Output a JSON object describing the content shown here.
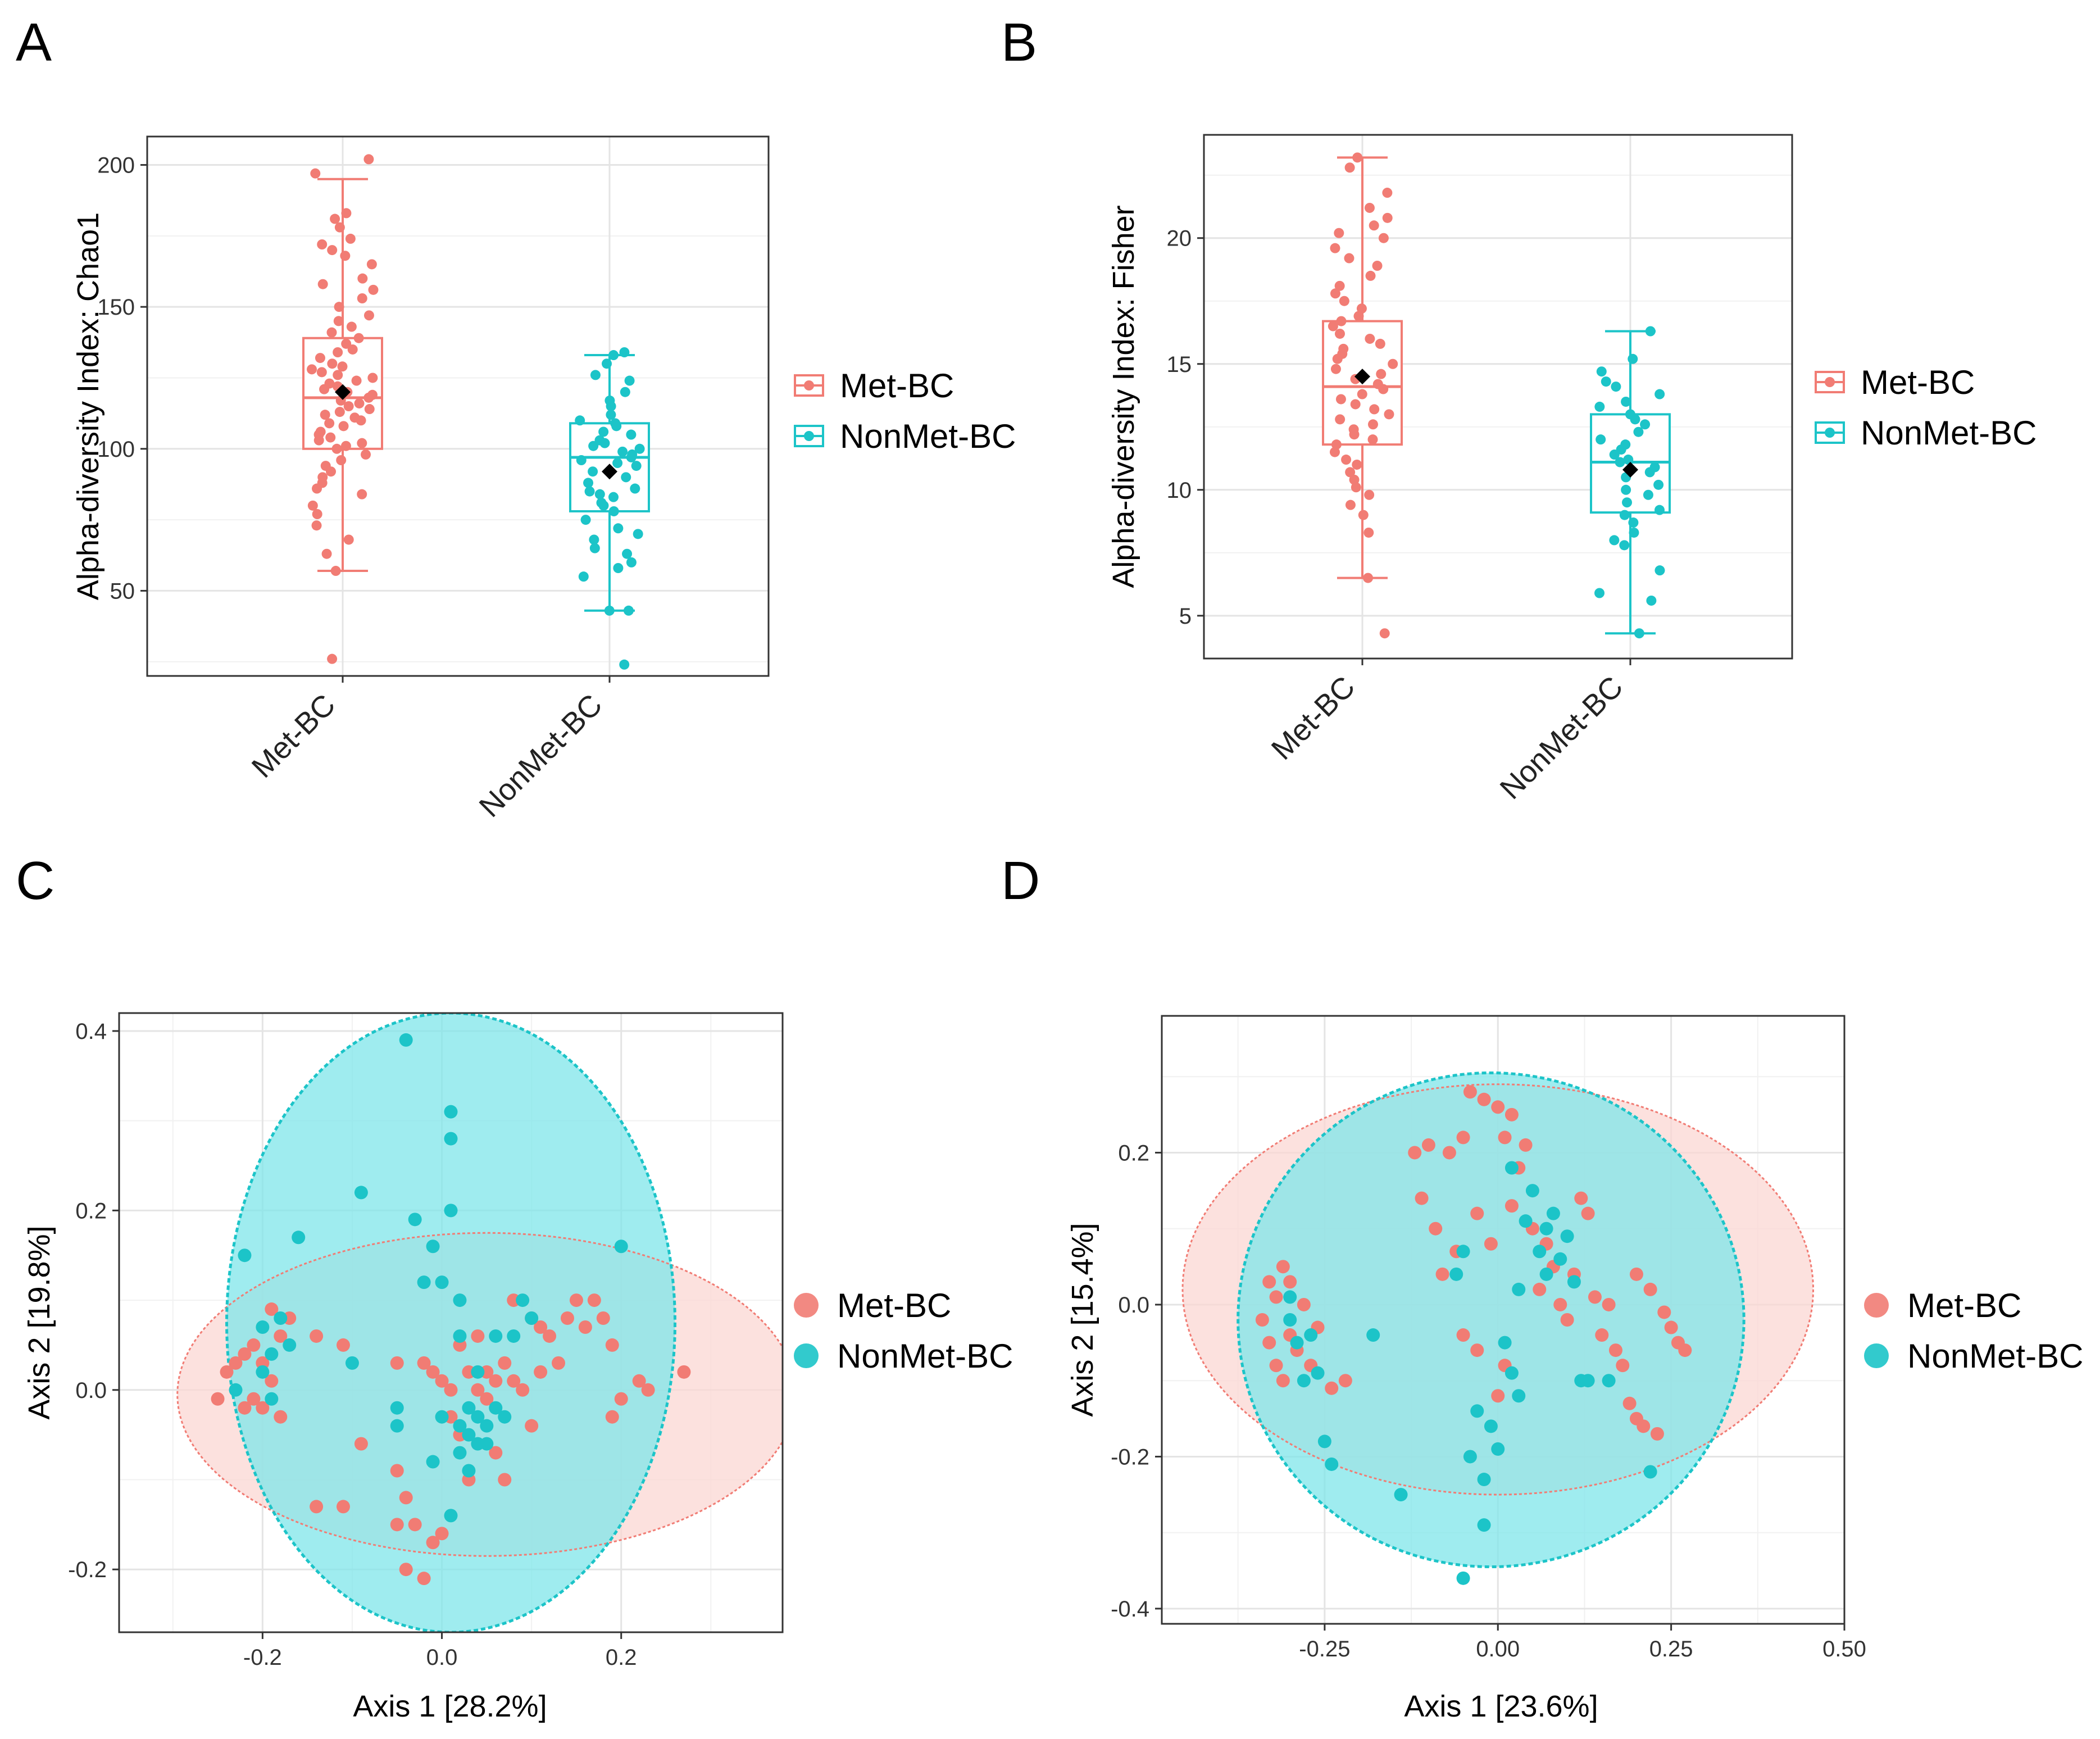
{
  "colors": {
    "met": "#f17c74",
    "nonmet": "#1cc4c8",
    "met_fill": "#fbd7d3",
    "nonmet_fill": "#7fe6ea",
    "overlap": "#9dcfcc",
    "mean_marker": "#000000"
  },
  "chart_data": [
    {
      "panel": "A",
      "type": "boxplot",
      "ylabel": "Alpha-diversity Index: Chao1",
      "xlabel": "",
      "categories": [
        "Met-BC",
        "NonMet-BC"
      ],
      "ylim": [
        20,
        210
      ],
      "yticks": [
        50,
        100,
        150,
        200
      ],
      "legend": {
        "position": "right",
        "entries": [
          "Met-BC",
          "NonMet-BC"
        ]
      },
      "series": [
        {
          "name": "Met-BC",
          "color": "#f17c74",
          "whisker_low": 57,
          "q1": 100,
          "median": 118,
          "q3": 139,
          "whisker_high": 195,
          "mean": 120,
          "points": [
            202,
            197,
            183,
            181,
            178,
            174,
            172,
            170,
            168,
            165,
            160,
            158,
            156,
            153,
            150,
            147,
            145,
            143,
            141,
            139,
            137,
            135,
            134,
            132,
            130,
            129,
            128,
            127,
            126,
            125,
            124,
            123,
            122,
            121,
            120,
            119,
            118,
            117,
            116,
            115,
            114,
            113,
            112,
            111,
            110,
            109,
            108,
            106,
            105,
            104,
            103,
            102,
            101,
            100,
            98,
            96,
            94,
            92,
            90,
            88,
            86,
            84,
            80,
            77,
            73,
            68,
            63,
            57,
            26
          ]
        },
        {
          "name": "NonMet-BC",
          "color": "#1cc4c8",
          "whisker_low": 43,
          "q1": 78,
          "median": 97,
          "q3": 109,
          "whisker_high": 133,
          "mean": 92,
          "points": [
            134,
            133,
            130,
            126,
            124,
            120,
            117,
            115,
            112,
            110,
            109,
            108,
            106,
            105,
            103,
            102,
            101,
            100,
            99,
            98,
            97,
            96,
            95,
            94,
            92,
            90,
            88,
            86,
            85,
            84,
            83,
            81,
            80,
            78,
            75,
            72,
            70,
            68,
            65,
            63,
            60,
            58,
            55,
            43,
            43,
            24
          ]
        }
      ]
    },
    {
      "panel": "B",
      "type": "boxplot",
      "ylabel": "Alpha-diversity Index: Fisher",
      "xlabel": "",
      "categories": [
        "Met-BC",
        "NonMet-BC"
      ],
      "ylim": [
        3.3,
        24.1
      ],
      "yticks": [
        5,
        10,
        15,
        20
      ],
      "legend": {
        "position": "right",
        "entries": [
          "Met-BC",
          "NonMet-BC"
        ]
      },
      "series": [
        {
          "name": "Met-BC",
          "color": "#f17c74",
          "whisker_low": 6.5,
          "q1": 11.8,
          "median": 14.1,
          "q3": 16.7,
          "whisker_high": 23.2,
          "mean": 14.5,
          "points": [
            23.2,
            22.8,
            21.8,
            21.2,
            20.8,
            20.5,
            20.2,
            20.0,
            19.6,
            19.2,
            18.9,
            18.5,
            18.1,
            17.8,
            17.5,
            17.2,
            16.9,
            16.7,
            16.5,
            16.2,
            16.0,
            15.8,
            15.6,
            15.4,
            15.2,
            15.0,
            14.8,
            14.6,
            14.4,
            14.2,
            14.0,
            13.8,
            13.6,
            13.4,
            13.2,
            13.0,
            12.8,
            12.6,
            12.4,
            12.2,
            12.0,
            11.8,
            11.5,
            11.2,
            11.0,
            10.7,
            10.4,
            10.1,
            9.8,
            9.4,
            9.0,
            8.3,
            6.5,
            4.3
          ]
        },
        {
          "name": "NonMet-BC",
          "color": "#1cc4c8",
          "whisker_low": 4.3,
          "q1": 9.1,
          "median": 11.1,
          "q3": 13.0,
          "whisker_high": 16.3,
          "mean": 10.8,
          "points": [
            16.3,
            15.2,
            14.7,
            14.3,
            14.1,
            13.8,
            13.5,
            13.3,
            13.0,
            12.8,
            12.6,
            12.3,
            12.0,
            11.8,
            11.6,
            11.4,
            11.2,
            11.1,
            10.9,
            10.7,
            10.5,
            10.2,
            10.0,
            9.8,
            9.5,
            9.2,
            9.0,
            8.7,
            8.3,
            8.0,
            7.8,
            6.8,
            5.9,
            5.6,
            4.3
          ]
        }
      ]
    },
    {
      "panel": "C",
      "type": "scatter",
      "xlabel": "Axis 1 [28.2%]",
      "ylabel": "Axis 2 [19.8%]",
      "xlim": [
        -0.36,
        0.38
      ],
      "ylim": [
        -0.27,
        0.42
      ],
      "xticks": [
        -0.2,
        0.0,
        0.2
      ],
      "xtick_labels": [
        "-0.2",
        "0.0",
        "0.2"
      ],
      "yticks": [
        -0.2,
        0.0,
        0.2,
        0.4
      ],
      "ytick_labels": [
        "-0.2",
        "0.0",
        "0.2",
        "0.4"
      ],
      "legend": {
        "position": "right",
        "entries": [
          "Met-BC",
          "NonMet-BC"
        ]
      },
      "ellipses": [
        {
          "name": "Met-BC",
          "cx": 0.05,
          "cy": -0.005,
          "rx": 0.345,
          "ry": 0.18
        },
        {
          "name": "NonMet-BC",
          "cx": 0.01,
          "cy": 0.075,
          "rx": 0.25,
          "ry": 0.345
        }
      ],
      "series": [
        {
          "name": "Met-BC",
          "color": "#f17c74",
          "x": [
            -0.25,
            -0.24,
            -0.23,
            -0.22,
            -0.22,
            -0.21,
            -0.21,
            -0.2,
            -0.2,
            -0.19,
            -0.19,
            -0.18,
            -0.18,
            -0.17,
            -0.14,
            -0.14,
            -0.11,
            -0.11,
            -0.09,
            -0.05,
            -0.05,
            -0.05,
            -0.04,
            -0.04,
            -0.03,
            -0.02,
            -0.02,
            -0.01,
            -0.01,
            0.0,
            0.0,
            0.01,
            0.01,
            0.02,
            0.02,
            0.03,
            0.03,
            0.04,
            0.04,
            0.05,
            0.05,
            0.06,
            0.06,
            0.07,
            0.07,
            0.08,
            0.08,
            0.09,
            0.1,
            0.1,
            0.11,
            0.11,
            0.12,
            0.13,
            0.14,
            0.15,
            0.16,
            0.17,
            0.18,
            0.19,
            0.19,
            0.2,
            0.22,
            0.23,
            0.27
          ],
          "y": [
            -0.01,
            0.02,
            0.03,
            -0.02,
            0.04,
            -0.01,
            0.05,
            0.03,
            -0.02,
            0.09,
            0.01,
            -0.03,
            0.06,
            0.08,
            0.06,
            -0.13,
            -0.13,
            0.05,
            -0.06,
            -0.09,
            0.03,
            -0.15,
            -0.2,
            -0.12,
            -0.15,
            -0.21,
            0.03,
            -0.17,
            0.02,
            -0.16,
            0.01,
            -0.03,
            0.0,
            -0.05,
            0.05,
            -0.1,
            0.02,
            0.0,
            0.06,
            0.02,
            -0.01,
            -0.07,
            0.01,
            -0.1,
            0.03,
            0.1,
            0.01,
            0.0,
            0.08,
            -0.04,
            0.07,
            0.02,
            0.06,
            0.03,
            0.08,
            0.1,
            0.07,
            0.1,
            0.08,
            0.05,
            -0.03,
            -0.01,
            0.01,
            0.0,
            0.02
          ]
        },
        {
          "name": "NonMet-BC",
          "color": "#1cc4c8",
          "x": [
            -0.23,
            -0.22,
            -0.2,
            -0.2,
            -0.19,
            -0.19,
            -0.18,
            -0.17,
            -0.16,
            -0.1,
            -0.09,
            -0.05,
            -0.05,
            -0.04,
            -0.03,
            -0.02,
            -0.01,
            -0.01,
            0.0,
            0.0,
            0.01,
            0.01,
            0.01,
            0.01,
            0.02,
            0.02,
            0.02,
            0.02,
            0.03,
            0.03,
            0.03,
            0.04,
            0.04,
            0.04,
            0.05,
            0.05,
            0.06,
            0.06,
            0.07,
            0.08,
            0.09,
            0.1,
            0.2
          ],
          "y": [
            0.0,
            0.15,
            0.07,
            0.02,
            0.04,
            -0.01,
            0.08,
            0.05,
            0.17,
            0.03,
            0.22,
            -0.02,
            -0.04,
            0.39,
            0.19,
            0.12,
            0.16,
            -0.08,
            0.12,
            -0.03,
            0.2,
            0.31,
            0.28,
            -0.14,
            0.1,
            0.06,
            -0.04,
            -0.07,
            -0.05,
            -0.09,
            -0.02,
            -0.03,
            -0.06,
            0.02,
            -0.04,
            -0.06,
            0.06,
            -0.02,
            -0.03,
            0.06,
            0.1,
            0.08,
            0.16
          ]
        }
      ]
    },
    {
      "panel": "D",
      "type": "scatter",
      "xlabel": "Axis 1 [23.6%]",
      "ylabel": "Axis 2 [15.4%]",
      "xlim": [
        -0.485,
        0.5
      ],
      "ylim": [
        -0.42,
        0.38
      ],
      "xticks": [
        -0.25,
        0.0,
        0.25,
        0.5
      ],
      "xtick_labels": [
        "-0.25",
        "0.00",
        "0.25",
        "0.50"
      ],
      "yticks": [
        -0.4,
        -0.2,
        0.0,
        0.2
      ],
      "ytick_labels": [
        "-0.4",
        "-0.2",
        "0.0",
        "0.2"
      ],
      "legend": {
        "position": "right",
        "entries": [
          "Met-BC",
          "NonMet-BC"
        ]
      },
      "ellipses": [
        {
          "name": "Met-BC",
          "cx": 0.0,
          "cy": 0.02,
          "rx": 0.455,
          "ry": 0.27
        },
        {
          "name": "NonMet-BC",
          "cx": -0.01,
          "cy": -0.02,
          "rx": 0.365,
          "ry": 0.325
        }
      ],
      "series": [
        {
          "name": "Met-BC",
          "color": "#f17c74",
          "x": [
            -0.34,
            -0.33,
            -0.33,
            -0.32,
            -0.32,
            -0.31,
            -0.31,
            -0.3,
            -0.3,
            -0.29,
            -0.28,
            -0.27,
            -0.26,
            -0.24,
            -0.22,
            -0.12,
            -0.11,
            -0.1,
            -0.09,
            -0.08,
            -0.07,
            -0.06,
            -0.05,
            -0.05,
            -0.04,
            -0.03,
            -0.03,
            -0.02,
            -0.01,
            0.0,
            0.0,
            0.01,
            0.01,
            0.02,
            0.02,
            0.03,
            0.04,
            0.05,
            0.06,
            0.07,
            0.08,
            0.09,
            0.1,
            0.11,
            0.12,
            0.13,
            0.14,
            0.15,
            0.16,
            0.17,
            0.18,
            0.19,
            0.2,
            0.2,
            0.21,
            0.22,
            0.23,
            0.24,
            0.25,
            0.26,
            0.27
          ],
          "y": [
            -0.02,
            0.03,
            -0.05,
            0.01,
            -0.08,
            0.05,
            -0.1,
            0.03,
            -0.04,
            -0.06,
            0.0,
            -0.08,
            -0.03,
            -0.11,
            -0.1,
            0.2,
            0.14,
            0.21,
            0.1,
            0.04,
            0.2,
            0.07,
            0.22,
            -0.04,
            0.28,
            0.12,
            -0.06,
            0.27,
            0.08,
            0.26,
            -0.12,
            0.22,
            -0.08,
            0.25,
            0.13,
            0.18,
            0.21,
            0.1,
            0.02,
            0.08,
            0.05,
            0.0,
            -0.02,
            0.04,
            0.14,
            0.12,
            0.01,
            -0.04,
            0.0,
            -0.06,
            -0.08,
            -0.13,
            -0.15,
            0.04,
            -0.16,
            0.02,
            -0.17,
            -0.01,
            -0.03,
            -0.05,
            -0.06
          ]
        },
        {
          "name": "NonMet-BC",
          "color": "#1cc4c8",
          "x": [
            -0.3,
            -0.3,
            -0.29,
            -0.28,
            -0.27,
            -0.26,
            -0.25,
            -0.24,
            -0.18,
            -0.14,
            -0.06,
            -0.05,
            -0.05,
            -0.04,
            -0.03,
            -0.02,
            -0.02,
            -0.01,
            0.0,
            0.01,
            0.02,
            0.02,
            0.03,
            0.03,
            0.04,
            0.05,
            0.06,
            0.07,
            0.07,
            0.08,
            0.09,
            0.1,
            0.11,
            0.12,
            0.13,
            0.16,
            0.22
          ],
          "y": [
            0.01,
            -0.02,
            -0.05,
            -0.1,
            -0.04,
            -0.09,
            -0.18,
            -0.21,
            -0.04,
            -0.25,
            0.04,
            -0.36,
            0.07,
            -0.2,
            -0.14,
            -0.23,
            -0.29,
            -0.16,
            -0.19,
            -0.05,
            -0.09,
            0.18,
            -0.12,
            0.02,
            0.11,
            0.15,
            0.07,
            0.04,
            0.1,
            0.12,
            0.06,
            0.09,
            0.03,
            -0.1,
            -0.1,
            -0.1,
            -0.22
          ]
        }
      ]
    }
  ]
}
